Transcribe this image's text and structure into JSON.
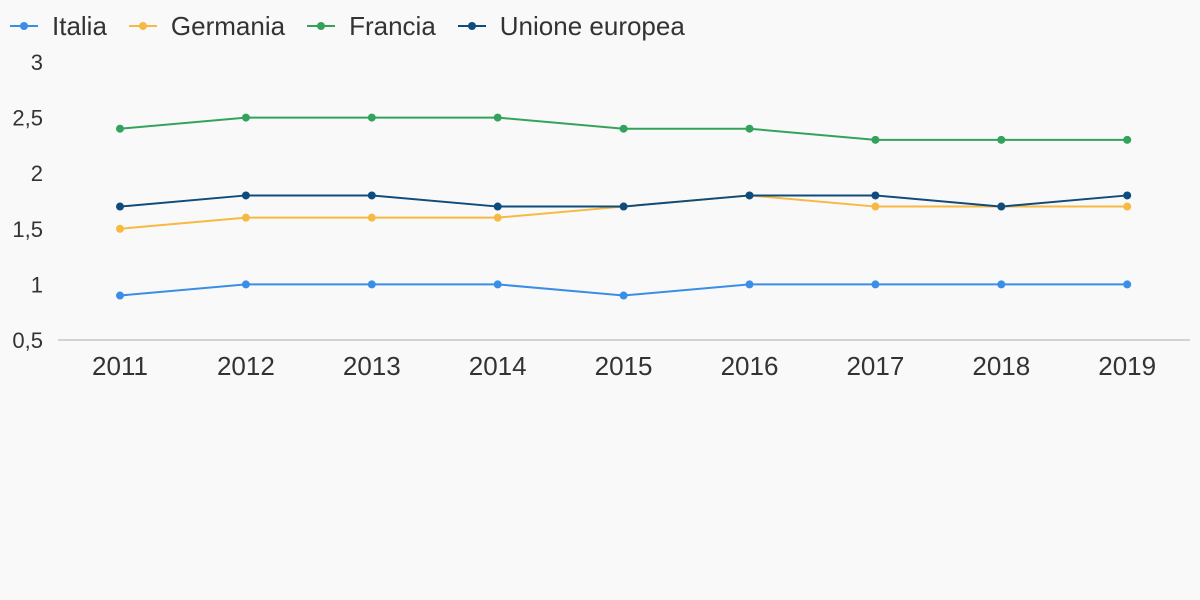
{
  "chart_data": {
    "type": "line",
    "categories": [
      "2011",
      "2012",
      "2013",
      "2014",
      "2015",
      "2016",
      "2017",
      "2018",
      "2019"
    ],
    "series": [
      {
        "name": "Italia",
        "color": "#3a8ee6",
        "values": [
          0.9,
          1.0,
          1.0,
          1.0,
          0.9,
          1.0,
          1.0,
          1.0,
          1.0
        ]
      },
      {
        "name": "Germania",
        "color": "#f7b941",
        "values": [
          1.5,
          1.6,
          1.6,
          1.6,
          1.7,
          1.8,
          1.7,
          1.7,
          1.7
        ]
      },
      {
        "name": "Francia",
        "color": "#33a35b",
        "values": [
          2.4,
          2.5,
          2.5,
          2.5,
          2.4,
          2.4,
          2.3,
          2.3,
          2.3
        ]
      },
      {
        "name": "Unione europea",
        "color": "#0e4c7d",
        "values": [
          1.7,
          1.8,
          1.8,
          1.7,
          1.7,
          1.8,
          1.8,
          1.7,
          1.8
        ]
      }
    ],
    "y_ticks": [
      "0,5",
      "1",
      "1,5",
      "2",
      "2,5",
      "3"
    ],
    "ylim": [
      0.5,
      3
    ],
    "grid": false,
    "legend_position": "top-left",
    "axis_color": "#d3d3d3"
  }
}
